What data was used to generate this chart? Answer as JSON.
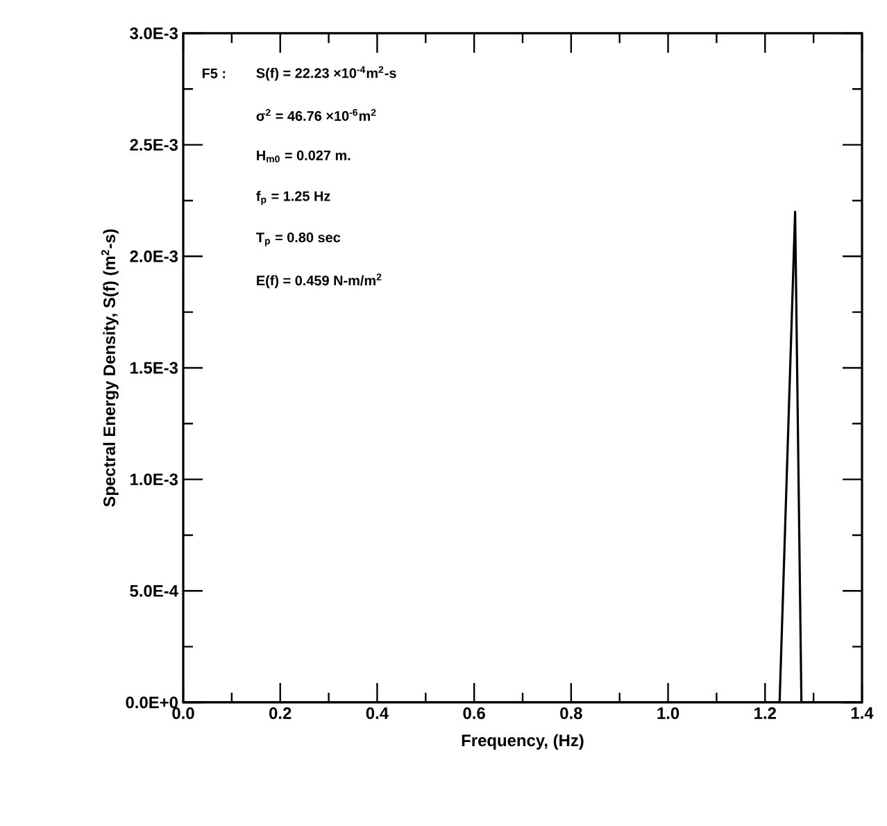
{
  "chart_data": {
    "type": "line",
    "xlabel": "Frequency, (Hz)",
    "ylabel": "Spectral Energy Density, S(f)  (m$^{2}$-s)",
    "annotations": [
      "F5 :",
      "S(f) = 22.23 ×10$^{-4}$m$^{2}$-s",
      "σ$^{2}$ = 46.76 ×10$^{-6}$m$^{2}$",
      "H$_{m0}$ = 0.027 m.",
      "f$_{p}$ = 1.25 Hz",
      "T$_{p}$ = 0.80 sec",
      "E(f) = 0.459 N-m/m$^{2}$"
    ],
    "x": [
      0,
      1.23,
      1.262,
      1.275,
      1.3,
      1.4
    ],
    "series": [
      {
        "color": "#000000",
        "values": [
          0,
          0,
          0.0022,
          0,
          0,
          0
        ]
      }
    ],
    "xlim": [
      0,
      1.4
    ],
    "ylim": [
      0,
      0.003
    ],
    "xticks": [
      {
        "value": 0,
        "label": "0.0"
      },
      {
        "value": 0.2,
        "label": "0.2"
      },
      {
        "value": 0.4,
        "label": "0.4"
      },
      {
        "value": 0.6,
        "label": "0.6"
      },
      {
        "value": 0.8,
        "label": "0.8"
      },
      {
        "value": 1.0,
        "label": "1.0"
      },
      {
        "value": 1.2,
        "label": "1.2"
      },
      {
        "value": 1.4,
        "label": "1.4"
      }
    ],
    "yticks": [
      {
        "value": 0,
        "label": "0.0E+0"
      },
      {
        "value": 0.0005,
        "label": "5.0E-4"
      },
      {
        "value": 0.001,
        "label": "1.0E-3"
      },
      {
        "value": 0.0015,
        "label": "1.5E-3"
      },
      {
        "value": 0.002,
        "label": "2.0E-3"
      },
      {
        "value": 0.0025,
        "label": "2.5E-3"
      },
      {
        "value": 0.003,
        "label": "3.0E-3"
      }
    ],
    "marker": "none",
    "line_style": "solid"
  }
}
